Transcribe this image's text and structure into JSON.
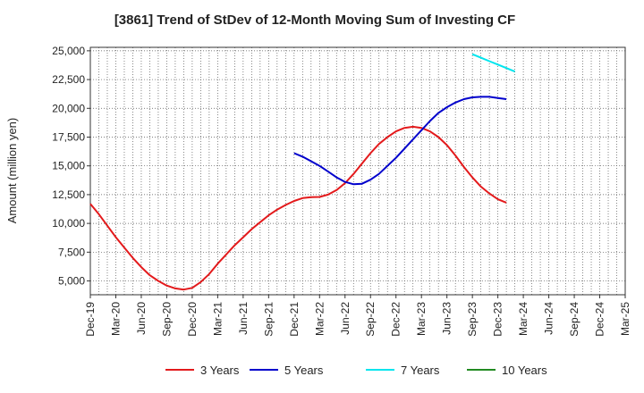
{
  "chart_data": {
    "type": "line",
    "title": "[3861]  Trend of StDev of 12-Month Moving Sum of Investing CF",
    "ylabel": "Amount (million yen)",
    "xlabel": "",
    "ylim": [
      3800,
      25300
    ],
    "yticks": [
      5000,
      7500,
      10000,
      12500,
      15000,
      17500,
      20000,
      22500,
      25000
    ],
    "ytick_labels": [
      "5,000",
      "7,500",
      "10,000",
      "12,500",
      "15,000",
      "17,500",
      "20,000",
      "22,500",
      "25,000"
    ],
    "xtick_labels": [
      "Dec-19",
      "Mar-20",
      "Jun-20",
      "Sep-20",
      "Dec-20",
      "Mar-21",
      "Jun-21",
      "Sep-21",
      "Dec-21",
      "Mar-22",
      "Jun-22",
      "Sep-22",
      "Dec-22",
      "Mar-23",
      "Jun-23",
      "Sep-23",
      "Dec-23",
      "Mar-24",
      "Jun-24",
      "Sep-24",
      "Dec-24",
      "Mar-25"
    ],
    "x_unit": "month",
    "grid": true,
    "legend_position": "bottom",
    "series": [
      {
        "name": "3 Years",
        "color": "#e31a1c",
        "start": "Dec-19",
        "values": [
          11700,
          10800,
          9800,
          8800,
          7900,
          7000,
          6200,
          5500,
          5000,
          4600,
          4350,
          4250,
          4400,
          4900,
          5600,
          6500,
          7300,
          8100,
          8800,
          9500,
          10100,
          10700,
          11200,
          11600,
          11950,
          12200,
          12280,
          12300,
          12500,
          12900,
          13500,
          14300,
          15200,
          16100,
          16900,
          17500,
          18000,
          18300,
          18400,
          18300,
          18000,
          17500,
          16800,
          15900,
          14900,
          14000,
          13200,
          12600,
          12100,
          11800
        ]
      },
      {
        "name": "5 Years",
        "color": "#0000cc",
        "start": "Dec-21",
        "values": [
          16100,
          15800,
          15400,
          15000,
          14500,
          14000,
          13600,
          13400,
          13450,
          13800,
          14300,
          15000,
          15700,
          16500,
          17300,
          18100,
          18900,
          19600,
          20100,
          20500,
          20800,
          20950,
          21000,
          21000,
          20900,
          20800
        ]
      },
      {
        "name": "7 Years",
        "color": "#00e5ee",
        "start": "Sep-23",
        "values": [
          24700,
          24400,
          24100,
          23800,
          23500,
          23200
        ]
      },
      {
        "name": "10 Years",
        "color": "#228b22",
        "start": "",
        "values": []
      }
    ]
  }
}
